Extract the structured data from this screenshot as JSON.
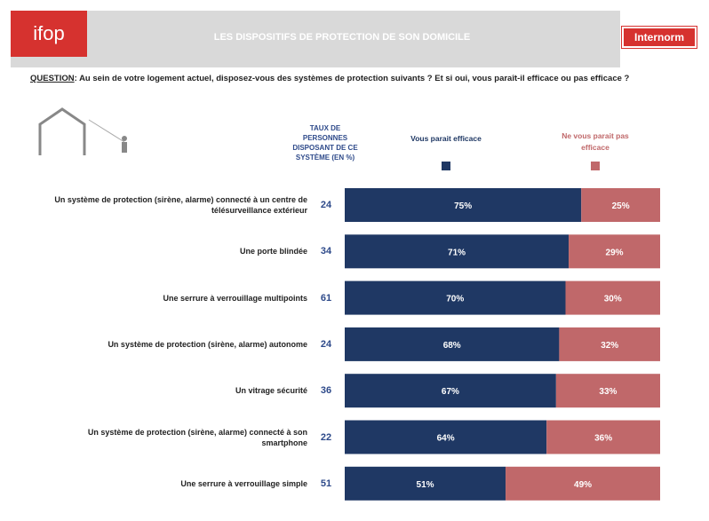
{
  "header": {
    "logo": "ifop",
    "title": "LES DISPOSITIFS DE PROTECTION DE SON DOMICILE",
    "brand": "Internorm"
  },
  "question": {
    "label": "QUESTION",
    "text": ": Au sein de votre logement actuel, disposez-vous des systèmes de protection suivants ? Et si oui, vous paraît-il efficace ou pas efficace ?"
  },
  "chart_data": {
    "type": "bar",
    "orientation": "horizontal",
    "stacked": true,
    "categories": [
      "Un système de protection (sirène, alarme) connecté à un centre de télésurveillance extérieur",
      "Une porte blindée",
      "Une serrure à verrouillage multipoints",
      "Un système de protection (sirène, alarme) autonome",
      "Un vitrage sécurité",
      "Un système de protection (sirène, alarme) connecté à son smartphone",
      "Une serrure à verrouillage simple"
    ],
    "share_header": "TAUX DE PERSONNES DISPOSANT DE CE SYSTÈME (EN %)",
    "share": [
      24,
      34,
      61,
      24,
      36,
      22,
      51
    ],
    "series": [
      {
        "name": "Vous parait efficace",
        "color": "#1f3864",
        "values": [
          75,
          71,
          70,
          68,
          67,
          64,
          51
        ],
        "value_labels": [
          "75%",
          "71%",
          "70%",
          "68%",
          "67%",
          "64%",
          "51%"
        ]
      },
      {
        "name": "Ne vous parait pas efficace",
        "color": "#c0686a",
        "values": [
          25,
          29,
          30,
          32,
          33,
          36,
          49
        ],
        "value_labels": [
          "25%",
          "29%",
          "30%",
          "32%",
          "33%",
          "36%",
          "49%"
        ]
      }
    ],
    "xlim": [
      0,
      100
    ]
  }
}
